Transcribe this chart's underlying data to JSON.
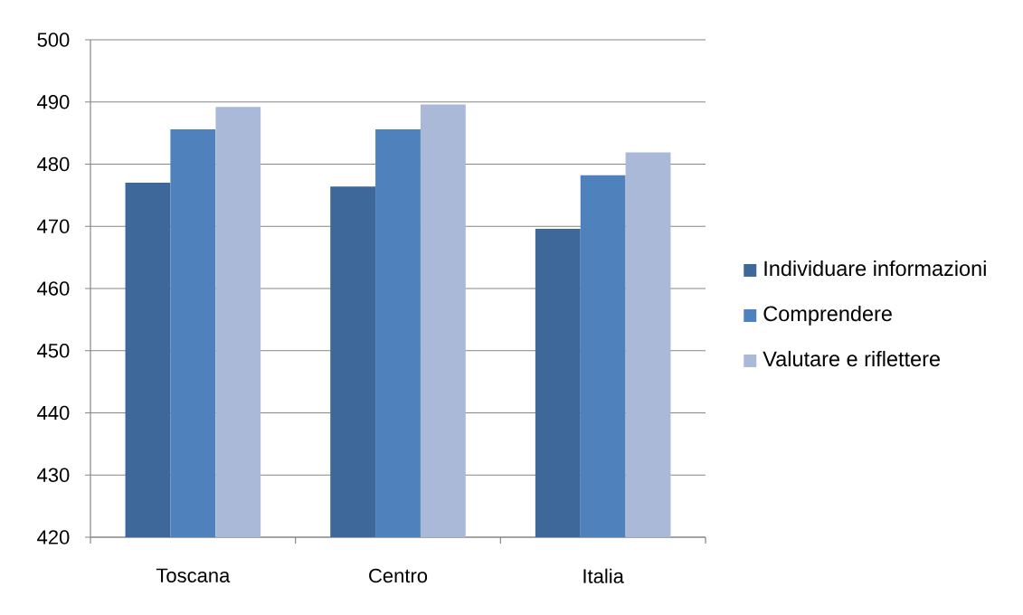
{
  "chart_data": {
    "type": "bar",
    "categories": [
      "Toscana",
      "Centro",
      "Italia"
    ],
    "series": [
      {
        "name": "Individuare informazioni",
        "color": "#3e6899",
        "values": [
          477.0,
          476.4,
          469.6
        ]
      },
      {
        "name": "Comprendere",
        "color": "#4f81bd",
        "values": [
          485.6,
          485.6,
          478.2
        ]
      },
      {
        "name": "Valutare e riflettere",
        "color": "#aab9d7",
        "values": [
          489.2,
          489.6,
          481.9
        ]
      }
    ],
    "ylim": [
      420,
      500
    ],
    "yticks": [
      420,
      430,
      440,
      450,
      460,
      470,
      480,
      490,
      500
    ],
    "grid": "y",
    "legend": "right"
  }
}
